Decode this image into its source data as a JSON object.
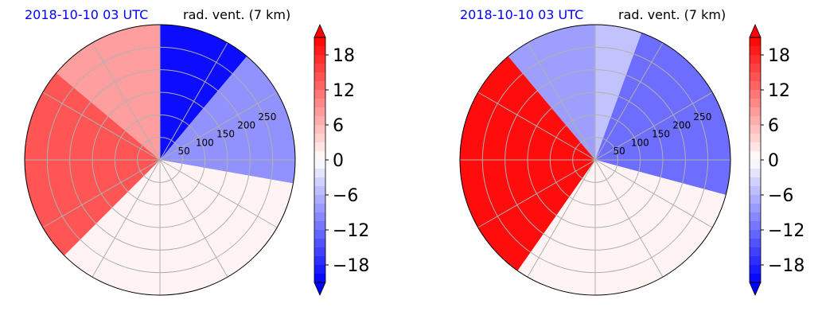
{
  "colors": {
    "strong_red": "#ff0000",
    "strong_blue": "#0000ff",
    "near_zero": "#fdeeee",
    "grid": "#b0b0b0"
  },
  "chart_data": [
    {
      "type": "heatmap",
      "projection": "polar (radar PPI)",
      "title_left": "2018-10-10 03 UTC",
      "title_right": "rad. vent. (7 km)",
      "radial_ticks": [
        "50",
        "100",
        "150",
        "200",
        "250"
      ],
      "radial_range": [
        0,
        300
      ],
      "radial_unit": "km",
      "angular_grid_deg": 30,
      "colorbar": {
        "ticks": [
          "18",
          "12",
          "6",
          "0",
          "−6",
          "−12",
          "−18"
        ],
        "tick_values": [
          18,
          12,
          6,
          0,
          -6,
          -12,
          -18
        ],
        "range": [
          -21,
          21
        ],
        "cmap": "bwr",
        "extend": "both"
      },
      "regions": [
        {
          "azimuth_start_deg": 0,
          "azimuth_end_deg": 40,
          "value": -20
        },
        {
          "azimuth_start_deg": 40,
          "azimuth_end_deg": 100,
          "value": -9
        },
        {
          "azimuth_start_deg": 100,
          "azimuth_end_deg": 225,
          "value": 1
        },
        {
          "azimuth_start_deg": 225,
          "azimuth_end_deg": 310,
          "value": 14
        },
        {
          "azimuth_start_deg": 310,
          "azimuth_end_deg": 360,
          "value": 8
        }
      ]
    },
    {
      "type": "heatmap",
      "projection": "polar (radar PPI)",
      "title_left": "2018-10-10 03 UTC",
      "title_right": "rad. vent. (7 km)",
      "radial_ticks": [
        "50",
        "100",
        "150",
        "200",
        "250"
      ],
      "radial_range": [
        0,
        300
      ],
      "radial_unit": "km",
      "angular_grid_deg": 30,
      "colorbar": {
        "ticks": [
          "18",
          "12",
          "6",
          "0",
          "−6",
          "−12",
          "−18"
        ],
        "tick_values": [
          18,
          12,
          6,
          0,
          -6,
          -12,
          -18
        ],
        "range": [
          -21,
          21
        ],
        "cmap": "bwr",
        "extend": "both"
      },
      "regions": [
        {
          "azimuth_start_deg": 0,
          "azimuth_end_deg": 20,
          "value": -5
        },
        {
          "azimuth_start_deg": 20,
          "azimuth_end_deg": 105,
          "value": -12
        },
        {
          "azimuth_start_deg": 105,
          "azimuth_end_deg": 215,
          "value": 1
        },
        {
          "azimuth_start_deg": 215,
          "azimuth_end_deg": 320,
          "value": 20
        },
        {
          "azimuth_start_deg": 320,
          "azimuth_end_deg": 360,
          "value": -8
        }
      ]
    }
  ]
}
